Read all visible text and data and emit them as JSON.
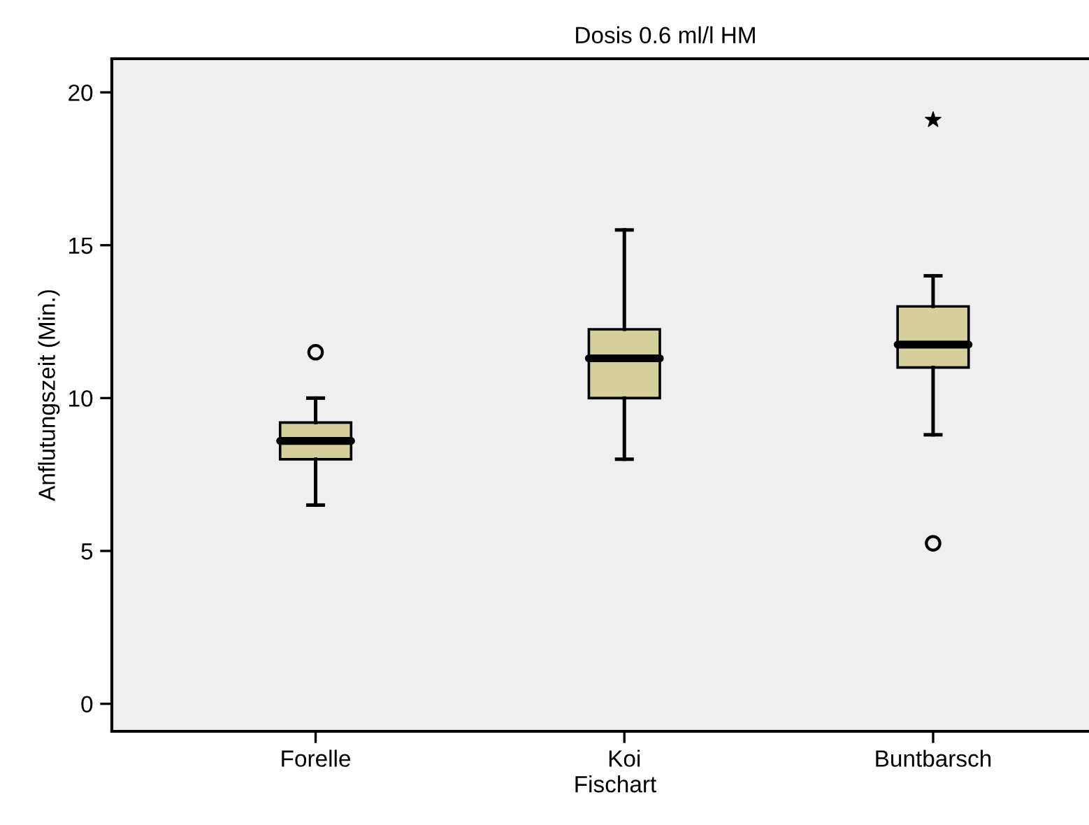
{
  "chart_data": {
    "type": "box",
    "title": "Dosis 0.6 ml/l HM",
    "xlabel": "Fischart",
    "ylabel": "Anflutungszeit (Min.)",
    "categories": [
      "Forelle",
      "Koi",
      "Buntbarsch"
    ],
    "series": [
      {
        "color": "#d5cf9c",
        "boxes": [
          {
            "low": 6.5,
            "q1": 8.0,
            "median": 8.6,
            "q3": 9.2,
            "high": 10.0,
            "outliers": [
              11.5
            ]
          },
          {
            "low": 8.0,
            "q1": 10.0,
            "median": 11.3,
            "q3": 12.25,
            "high": 15.5
          },
          {
            "low": 8.8,
            "q1": 11.0,
            "median": 11.75,
            "q3": 13.0,
            "high": 14.0,
            "outliers": [
              5.25
            ]
          }
        ]
      },
      {
        "type": "scatter",
        "color": "#000000",
        "marker": "star",
        "x": [
          "Buntbarsch"
        ],
        "values": [
          19.1
        ]
      }
    ],
    "ylim": [
      -0.9,
      21.1
    ],
    "yticks": [
      0,
      5,
      10,
      15,
      20
    ],
    "grid": false,
    "legend": false
  }
}
